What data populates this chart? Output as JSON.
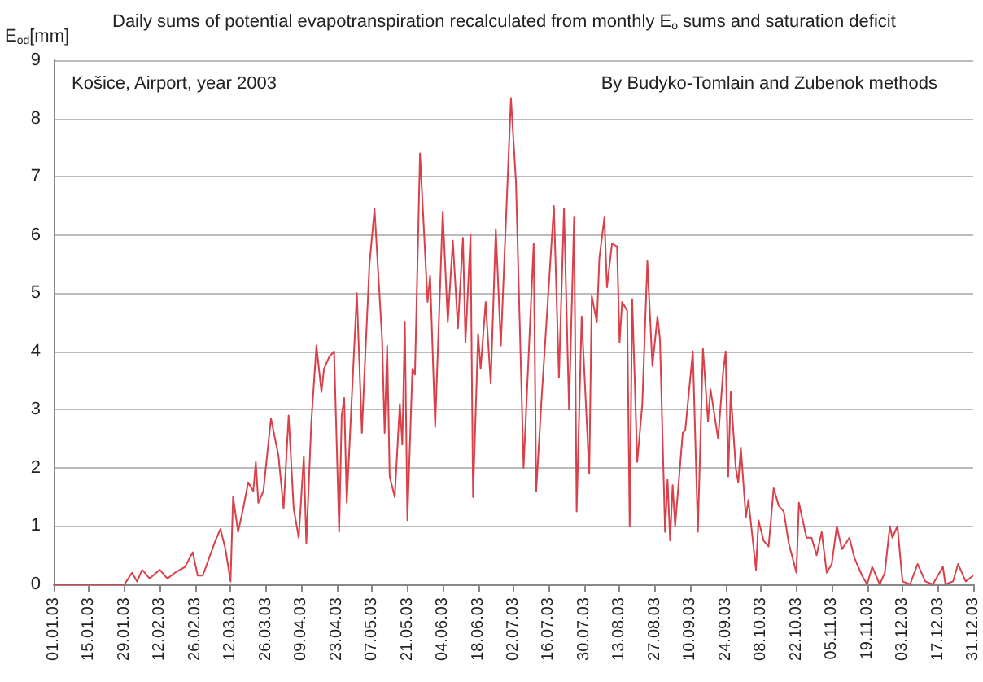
{
  "chart_data": {
    "type": "line",
    "title": "Daily sums of potential evapotranspiration recalculated from monthly E$_{o}$ sums and saturation deficit",
    "ylabel": "E$_{od}$[mm]",
    "annotations": [
      "Košice, Airport, year 2003",
      "By Budyko-Tomlain and Zubenok methods"
    ],
    "x": [
      "2003-01-01",
      "2003-01-29",
      "2003-02-01",
      "2003-02-03",
      "2003-02-05",
      "2003-02-08",
      "2003-02-12",
      "2003-02-15",
      "2003-02-18",
      "2003-02-22",
      "2003-02-25",
      "2003-02-27",
      "2003-03-01",
      "2003-03-06",
      "2003-03-08",
      "2003-03-10",
      "2003-03-12",
      "2003-03-13",
      "2003-03-15",
      "2003-03-17",
      "2003-03-19",
      "2003-03-21",
      "2003-03-22",
      "2003-03-23",
      "2003-03-25",
      "2003-03-28",
      "2003-03-31",
      "2003-04-02",
      "2003-04-04",
      "2003-04-06",
      "2003-04-08",
      "2003-04-10",
      "2003-04-11",
      "2003-04-13",
      "2003-04-15",
      "2003-04-17",
      "2003-04-18",
      "2003-04-20",
      "2003-04-22",
      "2003-04-24",
      "2003-04-25",
      "2003-04-26",
      "2003-04-27",
      "2003-05-01",
      "2003-05-03",
      "2003-05-04",
      "2003-05-06",
      "2003-05-08",
      "2003-05-11",
      "2003-05-12",
      "2003-05-13",
      "2003-05-14",
      "2003-05-16",
      "2003-05-18",
      "2003-05-19",
      "2003-05-20",
      "2003-05-21",
      "2003-05-23",
      "2003-05-24",
      "2003-05-26",
      "2003-05-29",
      "2003-05-30",
      "2003-06-01",
      "2003-06-04",
      "2003-06-06",
      "2003-06-08",
      "2003-06-10",
      "2003-06-12",
      "2003-06-13",
      "2003-06-15",
      "2003-06-16",
      "2003-06-18",
      "2003-06-19",
      "2003-06-21",
      "2003-06-23",
      "2003-06-25",
      "2003-06-27",
      "2003-07-01",
      "2003-07-03",
      "2003-07-06",
      "2003-07-10",
      "2003-07-11",
      "2003-07-13",
      "2003-07-18",
      "2003-07-20",
      "2003-07-22",
      "2003-07-24",
      "2003-07-26",
      "2003-07-27",
      "2003-07-29",
      "2003-08-01",
      "2003-08-02",
      "2003-08-04",
      "2003-08-05",
      "2003-08-07",
      "2003-08-08",
      "2003-08-10",
      "2003-08-12",
      "2003-08-13",
      "2003-08-14",
      "2003-08-16",
      "2003-08-17",
      "2003-08-18",
      "2003-08-20",
      "2003-08-22",
      "2003-08-24",
      "2003-08-26",
      "2003-08-28",
      "2003-08-29",
      "2003-08-31",
      "2003-09-01",
      "2003-09-02",
      "2003-09-03",
      "2003-09-04",
      "2003-09-07",
      "2003-09-08",
      "2003-09-11",
      "2003-09-13",
      "2003-09-15",
      "2003-09-17",
      "2003-09-18",
      "2003-09-21",
      "2003-09-23",
      "2003-09-24",
      "2003-09-25",
      "2003-09-26",
      "2003-09-28",
      "2003-09-29",
      "2003-09-30",
      "2003-10-02",
      "2003-10-03",
      "2003-10-06",
      "2003-10-07",
      "2003-10-09",
      "2003-10-11",
      "2003-10-13",
      "2003-10-15",
      "2003-10-17",
      "2003-10-19",
      "2003-10-22",
      "2003-10-23",
      "2003-10-26",
      "2003-10-28",
      "2003-10-30",
      "2003-11-01",
      "2003-11-03",
      "2003-11-05",
      "2003-11-07",
      "2003-11-09",
      "2003-11-12",
      "2003-11-14",
      "2003-11-17",
      "2003-11-19",
      "2003-11-21",
      "2003-11-24",
      "2003-11-26",
      "2003-11-28",
      "2003-11-29",
      "2003-12-01",
      "2003-12-03",
      "2003-12-06",
      "2003-12-09",
      "2003-12-12",
      "2003-12-15",
      "2003-12-19",
      "2003-12-20",
      "2003-12-23",
      "2003-12-25",
      "2003-12-28",
      "2003-12-31"
    ],
    "series": [
      {
        "color": "#d9404a",
        "values": [
          0,
          0,
          0.2,
          0.05,
          0.25,
          0.1,
          0.25,
          0.1,
          0.2,
          0.3,
          0.55,
          0.15,
          0.15,
          0.75,
          0.95,
          0.6,
          0.05,
          1.5,
          0.9,
          1.3,
          1.75,
          1.6,
          2.1,
          1.4,
          1.6,
          2.85,
          2.2,
          1.3,
          2.9,
          1.3,
          0.8,
          2.2,
          0.7,
          2.8,
          4.1,
          3.3,
          3.7,
          3.9,
          4.0,
          0.9,
          2.9,
          3.2,
          1.4,
          5.0,
          2.6,
          3.6,
          5.5,
          6.45,
          4.2,
          2.6,
          4.1,
          1.85,
          1.5,
          3.1,
          2.4,
          4.5,
          1.1,
          3.7,
          3.6,
          7.4,
          4.85,
          5.3,
          2.7,
          6.4,
          4.5,
          5.9,
          4.4,
          5.95,
          4.15,
          6.0,
          1.5,
          4.3,
          3.7,
          4.85,
          3.45,
          6.1,
          4.1,
          8.35,
          6.9,
          2.0,
          5.85,
          1.6,
          3.1,
          6.5,
          3.55,
          6.45,
          3.0,
          6.3,
          1.25,
          4.6,
          1.9,
          4.95,
          4.5,
          5.6,
          6.3,
          5.1,
          5.85,
          5.8,
          4.15,
          4.85,
          4.7,
          1.0,
          4.9,
          2.1,
          3.1,
          5.55,
          3.75,
          4.6,
          4.2,
          0.9,
          1.8,
          0.75,
          1.7,
          1.0,
          2.6,
          2.65,
          4.0,
          0.9,
          4.05,
          2.8,
          3.35,
          2.5,
          3.65,
          4.0,
          1.85,
          3.3,
          2.0,
          1.75,
          2.35,
          1.15,
          1.45,
          0.25,
          1.1,
          0.75,
          0.65,
          1.65,
          1.35,
          1.25,
          0.7,
          0.2,
          1.4,
          0.8,
          0.8,
          0.5,
          0.9,
          0.2,
          0.35,
          1.0,
          0.6,
          0.8,
          0.45,
          0.15,
          0,
          0.3,
          0,
          0.2,
          1.0,
          0.8,
          1.0,
          0.05,
          0,
          0.35,
          0.05,
          0,
          0.3,
          0,
          0.05,
          0.35,
          0.05,
          0.15
        ]
      }
    ],
    "xlim": [
      "2003-01-01",
      "2003-12-31"
    ],
    "xticks": [
      {
        "value": "2003-01-01",
        "label": "01.01.03"
      },
      {
        "value": "2003-01-15",
        "label": "15.01.03"
      },
      {
        "value": "2003-01-29",
        "label": "29.01.03"
      },
      {
        "value": "2003-02-12",
        "label": "12.02.03"
      },
      {
        "value": "2003-02-26",
        "label": "26.02.03"
      },
      {
        "value": "2003-03-12",
        "label": "12.03.03"
      },
      {
        "value": "2003-03-26",
        "label": "26.03.03"
      },
      {
        "value": "2003-04-09",
        "label": "09.04.03"
      },
      {
        "value": "2003-04-23",
        "label": "23.04.03"
      },
      {
        "value": "2003-05-07",
        "label": "07.05.03"
      },
      {
        "value": "2003-05-21",
        "label": "21.05.03"
      },
      {
        "value": "2003-06-04",
        "label": "04.06.03"
      },
      {
        "value": "2003-06-18",
        "label": "18.06.03"
      },
      {
        "value": "2003-07-02",
        "label": "02.07.03"
      },
      {
        "value": "2003-07-16",
        "label": "16.07.03"
      },
      {
        "value": "2003-07-30",
        "label": "30.07.03"
      },
      {
        "value": "2003-08-13",
        "label": "13.08.03"
      },
      {
        "value": "2003-08-27",
        "label": "27.08.03"
      },
      {
        "value": "2003-09-10",
        "label": "10.09.03"
      },
      {
        "value": "2003-09-24",
        "label": "24.09.03"
      },
      {
        "value": "2003-10-08",
        "label": "08.10.03"
      },
      {
        "value": "2003-10-22",
        "label": "22.10.03"
      },
      {
        "value": "2003-11-05",
        "label": "05.11.03"
      },
      {
        "value": "2003-11-19",
        "label": "19.11.03"
      },
      {
        "value": "2003-12-03",
        "label": "03.12.03"
      },
      {
        "value": "2003-12-17",
        "label": "17.12.03"
      },
      {
        "value": "2003-12-31",
        "label": "31.12.03"
      }
    ],
    "ylim": [
      0,
      9
    ],
    "yticks": [
      0,
      1,
      2,
      3,
      4,
      5,
      6,
      7,
      8,
      9
    ],
    "grid": "y",
    "marker": "none",
    "line_style": "solid"
  }
}
